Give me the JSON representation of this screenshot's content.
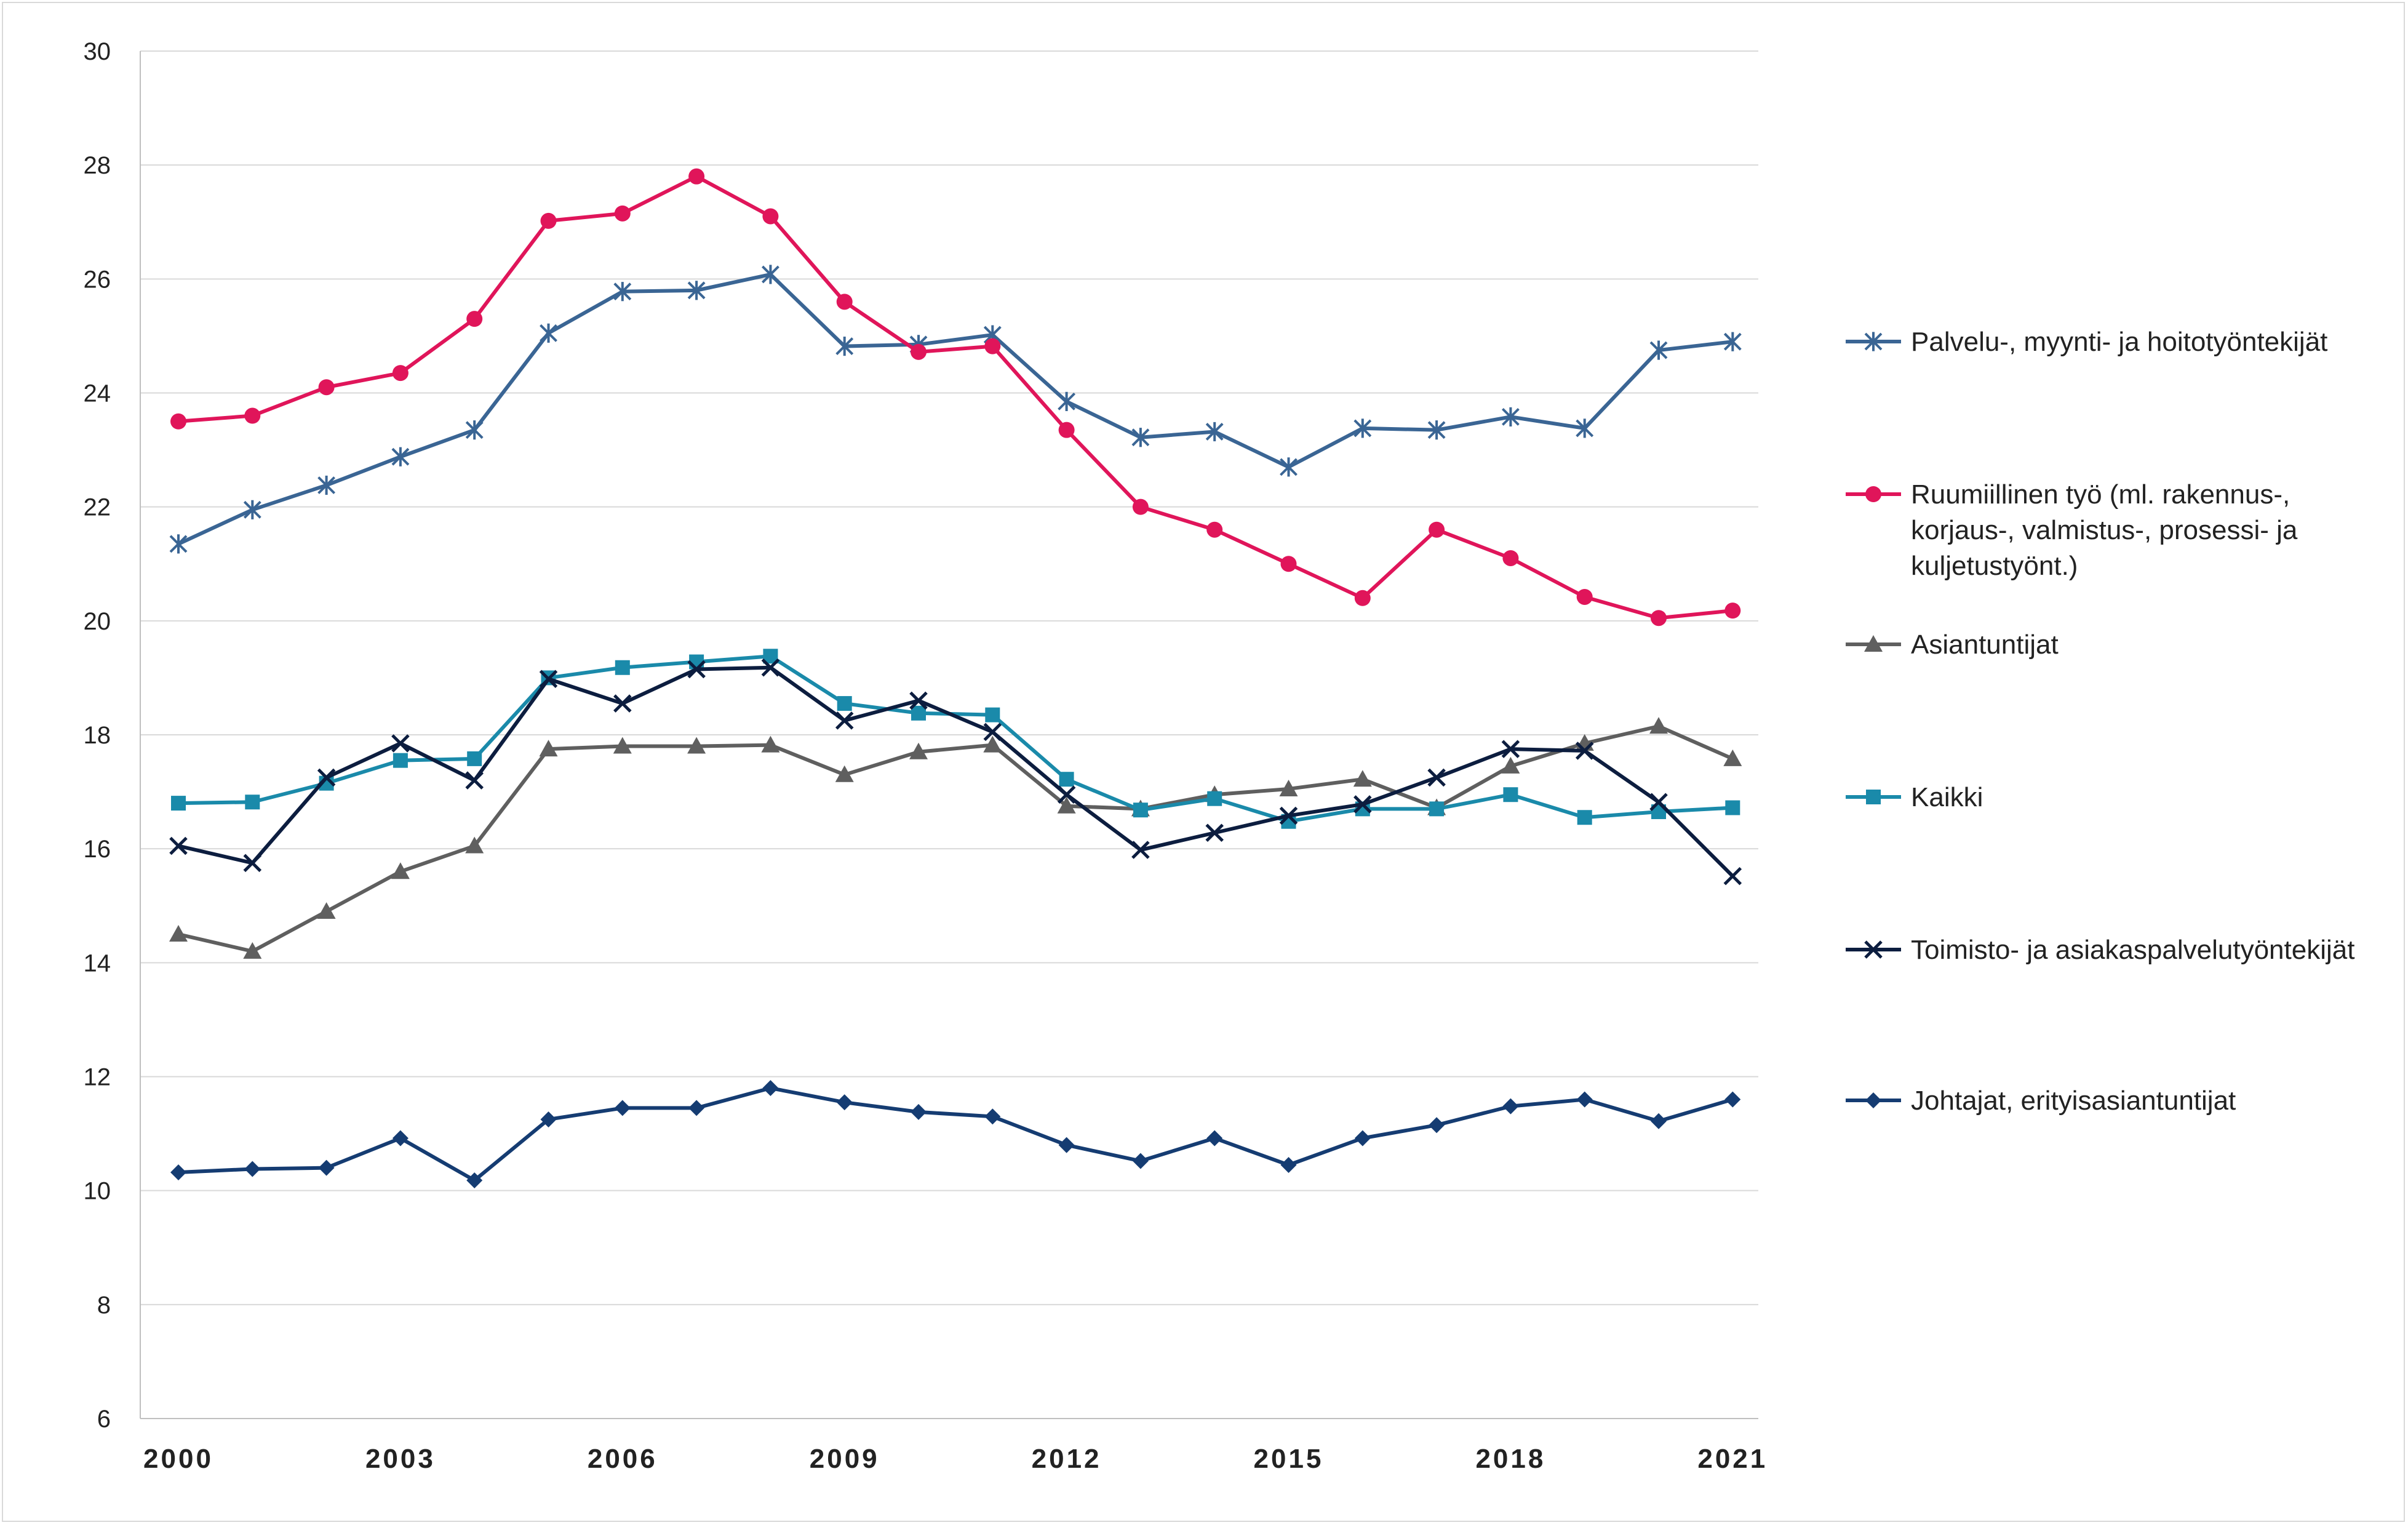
{
  "chart_data": {
    "type": "line",
    "title": "",
    "xlabel": "",
    "ylabel": "",
    "ylim": [
      6,
      30
    ],
    "yticks": [
      6,
      8,
      10,
      12,
      14,
      16,
      18,
      20,
      22,
      24,
      26,
      28,
      30
    ],
    "x": [
      2000,
      2001,
      2002,
      2003,
      2004,
      2005,
      2006,
      2007,
      2008,
      2009,
      2010,
      2011,
      2012,
      2013,
      2014,
      2015,
      2016,
      2017,
      2018,
      2019,
      2020,
      2021
    ],
    "xtick_labels": [
      "2000",
      "2003",
      "2006",
      "2009",
      "2012",
      "2015",
      "2018",
      "2021"
    ],
    "grid": "horizontal",
    "legend_position": "right",
    "series": [
      {
        "name": "Palvelu-, myynti- ja hoitotyöntekijät",
        "color": "#3a6594",
        "marker": "asterisk",
        "values": [
          21.35,
          21.95,
          22.38,
          22.88,
          23.35,
          25.05,
          25.78,
          25.8,
          26.08,
          24.82,
          24.85,
          25.02,
          23.85,
          23.22,
          23.32,
          22.7,
          23.38,
          23.35,
          23.58,
          23.38,
          24.75,
          24.9
        ]
      },
      {
        "name": "Ruumiillinen työ (ml. rakennus-, korjaus-, valmistus-, prosessi- ja kuljetustyönt.)",
        "legend_lines": [
          "Ruumiillinen työ (ml. rakennus-,",
          "korjaus-, valmistus-, prosessi- ja",
          "kuljetustyönt.)"
        ],
        "color": "#e0155a",
        "marker": "circle",
        "values": [
          23.5,
          23.6,
          24.1,
          24.35,
          25.3,
          27.02,
          27.15,
          27.8,
          27.1,
          25.6,
          24.72,
          24.82,
          23.35,
          22.0,
          21.6,
          21.0,
          20.4,
          21.6,
          21.1,
          20.42,
          20.05,
          20.18
        ]
      },
      {
        "name": "Asiantuntijat",
        "color": "#5f5f5f",
        "marker": "triangle",
        "values": [
          14.5,
          14.2,
          14.9,
          15.6,
          16.05,
          17.75,
          17.8,
          17.8,
          17.82,
          17.3,
          17.7,
          17.82,
          16.75,
          16.7,
          16.95,
          17.05,
          17.22,
          16.72,
          17.45,
          17.85,
          18.15,
          17.58
        ]
      },
      {
        "name": "Kaikki",
        "color": "#1a8aaa",
        "marker": "square",
        "values": [
          16.8,
          16.82,
          17.15,
          17.55,
          17.58,
          19.0,
          19.18,
          19.28,
          19.38,
          18.55,
          18.38,
          18.35,
          17.22,
          16.68,
          16.88,
          16.48,
          16.7,
          16.7,
          16.95,
          16.55,
          16.65,
          16.72
        ]
      },
      {
        "name": "Toimisto- ja asiakaspalvelutyöntekijät",
        "color": "#0c1d3f",
        "marker": "x",
        "values": [
          16.05,
          15.75,
          17.25,
          17.85,
          17.2,
          18.98,
          18.55,
          19.15,
          19.18,
          18.25,
          18.6,
          18.05,
          16.95,
          15.98,
          16.28,
          16.58,
          16.78,
          17.25,
          17.75,
          17.72,
          16.82,
          15.52
        ]
      },
      {
        "name": "Johtajat, erityisasiantuntijat",
        "color": "#153c72",
        "marker": "diamond",
        "values": [
          10.32,
          10.38,
          10.4,
          10.92,
          10.18,
          11.25,
          11.45,
          11.45,
          11.8,
          11.55,
          11.38,
          11.3,
          10.8,
          10.52,
          10.92,
          10.45,
          10.92,
          11.15,
          11.48,
          11.6,
          11.22,
          11.6
        ]
      }
    ]
  }
}
